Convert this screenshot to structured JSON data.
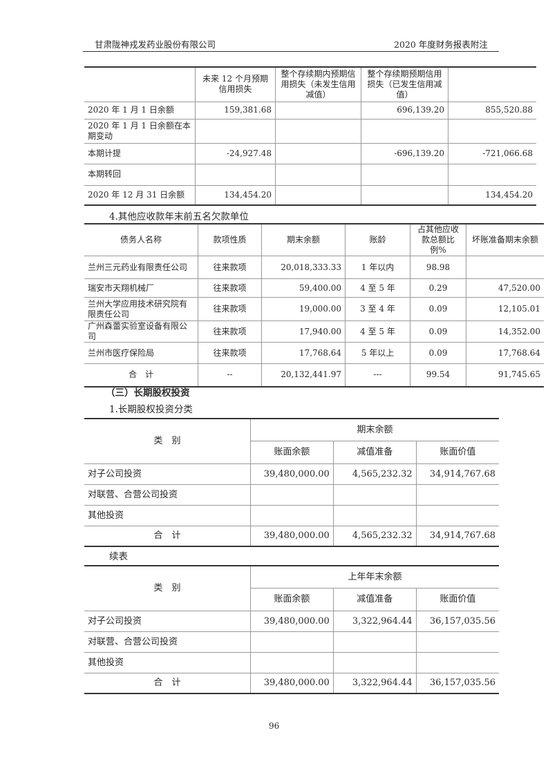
{
  "header": {
    "company": "甘肃陇神戎发药业股份有限公司",
    "report": "2020 年度财务报表附注"
  },
  "table_credit_loss": {
    "headers": [
      "",
      "未来 12 个月预期信用损失",
      "整个存续期内预期信用损失（未发生信用减值）",
      "整个存续期预期信用损失（已发生信用减值）",
      ""
    ],
    "rows": [
      [
        "2020 年 1 月 1 日余额",
        "159,381.68",
        "",
        "696,139.20",
        "855,520.88"
      ],
      [
        "2020 年 1 月 1 日余额在本期变动",
        "",
        "",
        "",
        ""
      ],
      [
        "本期计提",
        "-24,927.48",
        "",
        "-696,139.20",
        "-721,066.68"
      ],
      [
        "本期转回",
        "",
        "",
        "",
        ""
      ],
      [
        "2020 年 12 月 31 日余额",
        "134,454.20",
        "",
        "",
        "134,454.20"
      ]
    ]
  },
  "section4_title": "4.其他应收款年末前五名欠款单位",
  "table_top5": {
    "headers": [
      "债务人名称",
      "款项性质",
      "期末余额",
      "账龄",
      "占其他应收款总额比例%",
      "坏账准备期末余额"
    ],
    "rows": [
      [
        "兰州三元药业有限责任公司",
        "往来款项",
        "20,018,333.33",
        "1 年以内",
        "98.98",
        ""
      ],
      [
        "瑞安市天翔机械厂",
        "往来款项",
        "59,400.00",
        "4 至 5 年",
        "0.29",
        "47,520.00"
      ],
      [
        "兰州大学应用技术研究院有限责任公司",
        "往来款项",
        "19,000.00",
        "3 至 4 年",
        "0.09",
        "12,105.01"
      ],
      [
        "广州森蕾实验室设备有限公司",
        "往来款项",
        "17,940.00",
        "4 至 5 年",
        "0.09",
        "14,352.00"
      ],
      [
        "兰州市医疗保险局",
        "往来款项",
        "17,768.64",
        "5 年以上",
        "0.09",
        "17,768.64"
      ],
      [
        "合　计",
        "--",
        "20,132,441.97",
        "---",
        "99.54",
        "91,745.65"
      ]
    ]
  },
  "section3_title": "（三）长期股权投资",
  "section3_1_title": "1.长期股权投资分类",
  "table_lt_current": {
    "group_header": "期末余额",
    "category_header": "类　别",
    "sub_headers": [
      "账面余额",
      "减值准备",
      "账面价值"
    ],
    "rows": [
      [
        "对子公司投资",
        "39,480,000.00",
        "4,565,232.32",
        "34,914,767.68"
      ],
      [
        "对联营、合营公司投资",
        "",
        "",
        ""
      ],
      [
        "其他投资",
        "",
        "",
        ""
      ],
      [
        "合　计",
        "39,480,000.00",
        "4,565,232.32",
        "34,914,767.68"
      ]
    ]
  },
  "continued_label": "续表",
  "table_lt_prior": {
    "group_header": "上年年末余额",
    "category_header": "类　别",
    "sub_headers": [
      "账面余额",
      "减值准备",
      "账面价值"
    ],
    "rows": [
      [
        "对子公司投资",
        "39,480,000.00",
        "3,322,964.44",
        "36,157,035.56"
      ],
      [
        "对联营、合营公司投资",
        "",
        "",
        ""
      ],
      [
        "其他投资",
        "",
        "",
        ""
      ],
      [
        "合　计",
        "39,480,000.00",
        "3,322,964.44",
        "36,157,035.56"
      ]
    ]
  },
  "page_number": "96"
}
